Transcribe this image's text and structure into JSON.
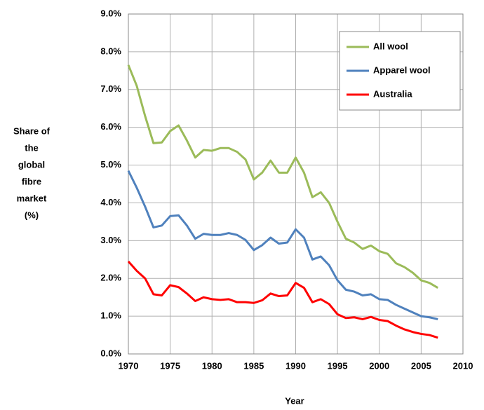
{
  "chart_data": {
    "type": "line",
    "ylabel": [
      "Share of",
      "the",
      "global",
      "fibre",
      "market",
      "(%)"
    ],
    "xlabel": "Year",
    "x": [
      1970,
      1971,
      1972,
      1973,
      1974,
      1975,
      1976,
      1977,
      1978,
      1979,
      1980,
      1981,
      1982,
      1983,
      1984,
      1985,
      1986,
      1987,
      1988,
      1989,
      1990,
      1991,
      1992,
      1993,
      1994,
      1995,
      1996,
      1997,
      1998,
      1999,
      2000,
      2001,
      2002,
      2003,
      2004,
      2005,
      2006,
      2007
    ],
    "series": [
      {
        "name": "All wool",
        "color": "#9bbb59",
        "values": [
          7.65,
          7.1,
          6.3,
          5.58,
          5.6,
          5.9,
          6.05,
          5.65,
          5.2,
          5.4,
          5.38,
          5.45,
          5.45,
          5.35,
          5.15,
          4.62,
          4.8,
          5.12,
          4.8,
          4.8,
          5.2,
          4.8,
          4.15,
          4.28,
          4.0,
          3.5,
          3.05,
          2.95,
          2.78,
          2.87,
          2.72,
          2.65,
          2.4,
          2.3,
          2.15,
          1.95,
          1.88,
          1.75
        ]
      },
      {
        "name": "Apparel wool",
        "color": "#4f81bd",
        "values": [
          4.85,
          4.4,
          3.9,
          3.35,
          3.4,
          3.65,
          3.67,
          3.4,
          3.05,
          3.18,
          3.15,
          3.15,
          3.2,
          3.15,
          3.02,
          2.75,
          2.88,
          3.08,
          2.92,
          2.95,
          3.3,
          3.08,
          2.5,
          2.58,
          2.35,
          1.95,
          1.7,
          1.65,
          1.55,
          1.58,
          1.45,
          1.43,
          1.3,
          1.2,
          1.1,
          1.0,
          0.97,
          0.92
        ]
      },
      {
        "name": "Australia",
        "color": "#ff0000",
        "values": [
          2.45,
          2.2,
          2.0,
          1.58,
          1.55,
          1.82,
          1.77,
          1.6,
          1.4,
          1.5,
          1.45,
          1.43,
          1.45,
          1.37,
          1.37,
          1.35,
          1.42,
          1.6,
          1.53,
          1.55,
          1.88,
          1.75,
          1.37,
          1.45,
          1.32,
          1.05,
          0.95,
          0.97,
          0.92,
          0.98,
          0.9,
          0.87,
          0.75,
          0.65,
          0.58,
          0.53,
          0.5,
          0.43
        ]
      }
    ],
    "xlim": [
      1970,
      2010
    ],
    "xticks": [
      1970,
      1975,
      1980,
      1985,
      1990,
      1995,
      2000,
      2005,
      2010
    ],
    "ylim": [
      0,
      9
    ],
    "yticks": [
      {
        "value": 0,
        "label": "0.0%"
      },
      {
        "value": 1,
        "label": "1.0%"
      },
      {
        "value": 2,
        "label": "2.0%"
      },
      {
        "value": 3,
        "label": "3.0%"
      },
      {
        "value": 4,
        "label": "4.0%"
      },
      {
        "value": 5,
        "label": "5.0%"
      },
      {
        "value": 6,
        "label": "6.0%"
      },
      {
        "value": 7,
        "label": "7.0%"
      },
      {
        "value": 8,
        "label": "8.0%"
      },
      {
        "value": 9,
        "label": "9.0%"
      }
    ],
    "grid": true,
    "legend": "upper right"
  }
}
